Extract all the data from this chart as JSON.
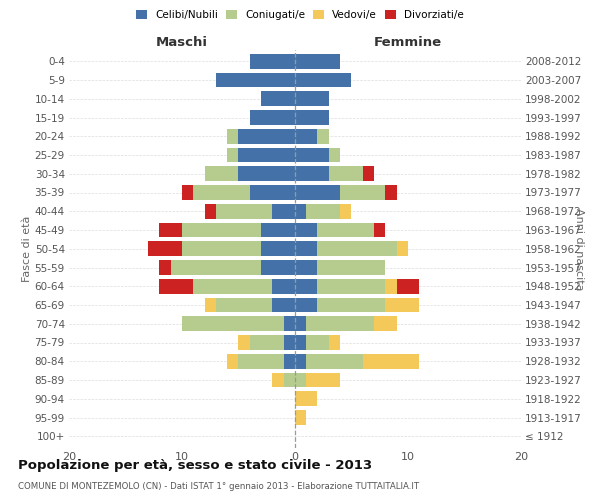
{
  "age_groups": [
    "100+",
    "95-99",
    "90-94",
    "85-89",
    "80-84",
    "75-79",
    "70-74",
    "65-69",
    "60-64",
    "55-59",
    "50-54",
    "45-49",
    "40-44",
    "35-39",
    "30-34",
    "25-29",
    "20-24",
    "15-19",
    "10-14",
    "5-9",
    "0-4"
  ],
  "birth_years": [
    "≤ 1912",
    "1913-1917",
    "1918-1922",
    "1923-1927",
    "1928-1932",
    "1933-1937",
    "1938-1942",
    "1943-1947",
    "1948-1952",
    "1953-1957",
    "1958-1962",
    "1963-1967",
    "1968-1972",
    "1973-1977",
    "1978-1982",
    "1983-1987",
    "1988-1992",
    "1993-1997",
    "1998-2002",
    "2003-2007",
    "2008-2012"
  ],
  "maschi": {
    "celibi": [
      0,
      0,
      0,
      0,
      1,
      1,
      1,
      2,
      2,
      3,
      3,
      3,
      2,
      4,
      5,
      5,
      5,
      4,
      3,
      7,
      4
    ],
    "coniugati": [
      0,
      0,
      0,
      1,
      4,
      3,
      9,
      5,
      7,
      8,
      7,
      7,
      5,
      5,
      3,
      1,
      1,
      0,
      0,
      0,
      0
    ],
    "vedovi": [
      0,
      0,
      0,
      1,
      1,
      1,
      0,
      1,
      0,
      0,
      0,
      0,
      0,
      0,
      0,
      0,
      0,
      0,
      0,
      0,
      0
    ],
    "divorziati": [
      0,
      0,
      0,
      0,
      0,
      0,
      0,
      0,
      3,
      1,
      3,
      2,
      1,
      1,
      0,
      0,
      0,
      0,
      0,
      0,
      0
    ]
  },
  "femmine": {
    "nubili": [
      0,
      0,
      0,
      0,
      1,
      1,
      1,
      2,
      2,
      2,
      2,
      2,
      1,
      4,
      3,
      3,
      2,
      3,
      3,
      5,
      4
    ],
    "coniugate": [
      0,
      0,
      0,
      1,
      5,
      2,
      6,
      6,
      6,
      6,
      7,
      5,
      3,
      4,
      3,
      1,
      1,
      0,
      0,
      0,
      0
    ],
    "vedove": [
      0,
      1,
      2,
      3,
      5,
      1,
      2,
      3,
      1,
      0,
      1,
      0,
      1,
      0,
      0,
      0,
      0,
      0,
      0,
      0,
      0
    ],
    "divorziate": [
      0,
      0,
      0,
      0,
      0,
      0,
      0,
      0,
      2,
      0,
      0,
      1,
      0,
      1,
      1,
      0,
      0,
      0,
      0,
      0,
      0
    ]
  },
  "colors": {
    "celibi_nubili": "#4472a8",
    "coniugati": "#b5cc8e",
    "vedovi": "#f5c85a",
    "divorziati": "#cc2222"
  },
  "xlim": 20,
  "title": "Popolazione per età, sesso e stato civile - 2013",
  "subtitle": "COMUNE DI MONTEZEMOLO (CN) - Dati ISTAT 1° gennaio 2013 - Elaborazione TUTTAITALIA.IT",
  "xlabel_left": "Maschi",
  "xlabel_right": "Femmine",
  "ylabel_left": "Fasce di età",
  "ylabel_right": "Anni di nascita",
  "legend_labels": [
    "Celibi/Nubili",
    "Coniugati/e",
    "Vedovi/e",
    "Divorziati/e"
  ]
}
